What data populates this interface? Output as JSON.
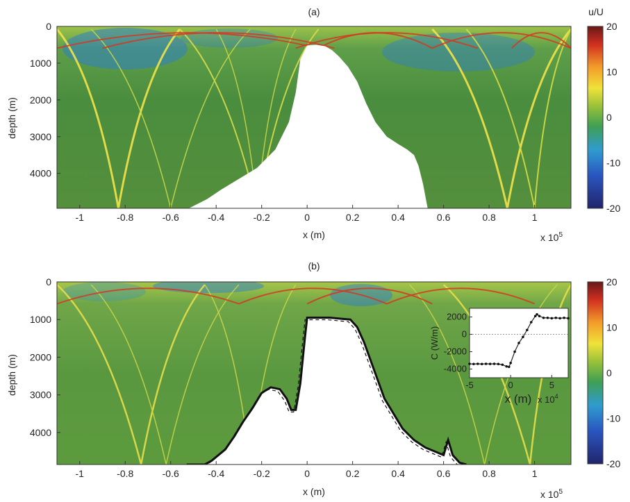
{
  "chart_data": [
    {
      "type": "heatmap",
      "title": "(a)",
      "xlabel": "x (m)",
      "x_multiplier": "x 10",
      "x_multiplier_exp": "5",
      "ylabel": "depth (m)",
      "xlim": [
        -1.1,
        1.16
      ],
      "ylim": [
        0,
        4950
      ],
      "y_reversed": true,
      "x_ticks": [
        "-1",
        "-0.8",
        "-0.6",
        "-0.4",
        "-0.2",
        "0",
        "0.2",
        "0.4",
        "0.6",
        "0.8",
        "1"
      ],
      "y_ticks": [
        "0",
        "1000",
        "2000",
        "3000",
        "4000"
      ],
      "colorbar": {
        "label": "u/U",
        "min": -20,
        "max": 20,
        "ticks": [
          "20",
          "10",
          "0",
          "-10",
          "-20"
        ]
      },
      "topography": {
        "x": [
          -0.52,
          -0.44,
          -0.38,
          -0.3,
          -0.22,
          -0.14,
          -0.08,
          -0.05,
          -0.03,
          0.0,
          0.04,
          0.08,
          0.11,
          0.14,
          0.18,
          0.22,
          0.26,
          0.3,
          0.35,
          0.4,
          0.44,
          0.47,
          0.49,
          0.51,
          0.53
        ],
        "depth": [
          4950,
          4700,
          4450,
          4150,
          3850,
          3350,
          2600,
          1800,
          900,
          520,
          500,
          540,
          650,
          820,
          1100,
          1500,
          2100,
          2600,
          3000,
          3200,
          3350,
          3500,
          3800,
          4300,
          4950
        ]
      },
      "beams_note": ""
    },
    {
      "type": "heatmap",
      "title": "(b)",
      "xlabel": "x (m)",
      "x_multiplier": "x 10",
      "x_multiplier_exp": "5",
      "ylabel": "depth (m)",
      "xlim": [
        -1.1,
        1.16
      ],
      "ylim": [
        0,
        4850
      ],
      "y_reversed": true,
      "x_ticks": [
        "-1",
        "-0.8",
        "-0.6",
        "-0.4",
        "-0.2",
        "0",
        "0.2",
        "0.4",
        "0.6",
        "0.8",
        "1"
      ],
      "y_ticks": [
        "0",
        "1000",
        "2000",
        "3000",
        "4000"
      ],
      "colorbar": {
        "label": "",
        "min": -20,
        "max": 20,
        "ticks": [
          "20",
          "10",
          "0",
          "-10",
          "-20"
        ]
      },
      "topography": {
        "x": [
          -0.53,
          -0.45,
          -0.42,
          -0.39,
          -0.36,
          -0.32,
          -0.28,
          -0.24,
          -0.2,
          -0.16,
          -0.12,
          -0.09,
          -0.07,
          -0.05,
          -0.03,
          -0.01,
          0.0,
          0.05,
          0.1,
          0.15,
          0.19,
          0.22,
          0.25,
          0.28,
          0.31,
          0.34,
          0.38,
          0.42,
          0.47,
          0.52,
          0.56,
          0.6,
          0.62,
          0.64,
          0.67,
          0.7
        ],
        "depth": [
          4850,
          4850,
          4750,
          4600,
          4450,
          4100,
          3700,
          3350,
          2950,
          2800,
          2850,
          3100,
          3400,
          3400,
          2700,
          1500,
          950,
          950,
          950,
          980,
          1000,
          1200,
          1600,
          2100,
          2600,
          3100,
          3500,
          3900,
          4200,
          4400,
          4500,
          4600,
          4200,
          4600,
          4800,
          4850
        ]
      },
      "inset": {
        "type": "line",
        "xlabel": "x (m)",
        "x_multiplier": "x 10",
        "x_multiplier_exp": "4",
        "ylabel": "C (W/m)",
        "xlim": [
          -5,
          7
        ],
        "ylim": [
          -5000,
          3000
        ],
        "x_ticks": [
          "-5",
          "0",
          "5"
        ],
        "y_ticks": [
          "2000",
          "0",
          "-2000",
          "-4000"
        ],
        "x": [
          -5,
          -4.5,
          -4,
          -3.5,
          -3,
          -2.5,
          -2,
          -1.5,
          -1,
          -0.5,
          -0.2,
          0,
          0.5,
          1,
          1.5,
          2,
          2.5,
          3,
          3.2,
          3.5,
          4,
          4.5,
          5,
          5.5,
          6,
          6.5,
          7
        ],
        "y": [
          -3400,
          -3420,
          -3400,
          -3420,
          -3400,
          -3410,
          -3400,
          -3420,
          -3500,
          -3700,
          -3750,
          -3300,
          -2000,
          -1000,
          -300,
          500,
          1400,
          2100,
          2300,
          2100,
          1900,
          1900,
          1850,
          1900,
          1850,
          1900,
          1850
        ]
      }
    }
  ]
}
